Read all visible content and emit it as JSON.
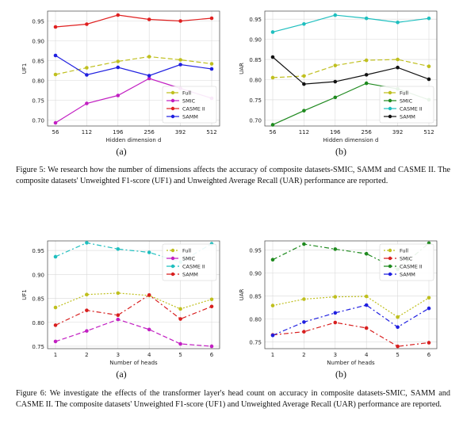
{
  "figures": [
    {
      "number_label": "Figure 5:",
      "caption": "We research how the number of dimensions affects the accuracy of composite datasets-SMIC, SAMM and CASME II. The composite datasets' Unweighted F1-score (UF1) and Unweighted Average Recall (UAR) performance are reported.",
      "panels": [
        "(a)",
        "(b)"
      ]
    },
    {
      "number_label": "Figure 6:",
      "caption": "We investigate the effects of the transformer layer's head count on accuracy in composite datasets-SMIC, SAMM and CASME II. The composite datasets' Unweighted F1-score (UF1) and Unweighted Average Recall (UAR) performance are reported.",
      "panels": [
        "(a)",
        "(b)"
      ]
    }
  ],
  "colors": {
    "Full": "#bfbf1e",
    "SMIC": "#c21fc2",
    "CASME II": "#1fbfbf",
    "SAMM": "#1f1fe0",
    "SMIC_b": "#1f8a1f",
    "SAMM_b": "#111111",
    "SMIC_h": "#d81f1f",
    "SMIC_hb": "#d81f1f",
    "CASME II_hb": "#1f8a1f"
  },
  "chart_data": [
    {
      "type": "line",
      "xlabel": "Hidden dimension d",
      "ylabel": "UF1",
      "categories": [
        "56",
        "112",
        "196",
        "256",
        "392",
        "512"
      ],
      "yticks": [
        "0.70",
        "0.75",
        "0.80",
        "0.85",
        "0.90",
        "0.95"
      ],
      "ylim": [
        0.685,
        0.975
      ],
      "legend": "lower-right",
      "series": [
        {
          "name": "Full",
          "values": [
            0.815,
            0.832,
            0.848,
            0.86,
            0.852,
            0.842
          ],
          "dash": "6,3",
          "color_key": "Full"
        },
        {
          "name": "SMIC",
          "values": [
            0.693,
            0.742,
            0.762,
            0.805,
            0.78,
            0.755
          ],
          "dash": "",
          "color_key": "SMIC"
        },
        {
          "name": "CASME II",
          "values": [
            0.935,
            0.942,
            0.965,
            0.954,
            0.95,
            0.957
          ],
          "dash": "",
          "color": "#e02020"
        },
        {
          "name": "SAMM",
          "values": [
            0.863,
            0.814,
            0.833,
            0.812,
            0.84,
            0.829
          ],
          "dash": "",
          "color_key": "SAMM"
        }
      ]
    },
    {
      "type": "line",
      "xlabel": "Hidden dimension d",
      "ylabel": "UAR",
      "categories": [
        "56",
        "112",
        "196",
        "256",
        "392",
        "512"
      ],
      "yticks": [
        "0.70",
        "0.75",
        "0.80",
        "0.85",
        "0.90",
        "0.95"
      ],
      "ylim": [
        0.685,
        0.97
      ],
      "legend": "lower-right",
      "series": [
        {
          "name": "Full",
          "values": [
            0.805,
            0.809,
            0.835,
            0.848,
            0.85,
            0.833
          ],
          "dash": "6,3",
          "color_key": "Full"
        },
        {
          "name": "SMIC",
          "values": [
            0.688,
            0.723,
            0.756,
            0.791,
            0.777,
            0.75
          ],
          "dash": "",
          "color_key": "SMIC_b"
        },
        {
          "name": "CASME II",
          "values": [
            0.918,
            0.938,
            0.96,
            0.952,
            0.942,
            0.952
          ],
          "dash": "",
          "color_key": "CASME II"
        },
        {
          "name": "SAMM",
          "values": [
            0.856,
            0.789,
            0.795,
            0.812,
            0.83,
            0.801
          ],
          "dash": "",
          "color_key": "SAMM_b"
        }
      ]
    },
    {
      "type": "line",
      "xlabel": "Number of heads",
      "ylabel": "UF1",
      "categories": [
        "1",
        "2",
        "3",
        "4",
        "5",
        "6"
      ],
      "yticks": [
        "0.75",
        "0.80",
        "0.85",
        "0.90",
        "0.95"
      ],
      "ylim": [
        0.745,
        0.97
      ],
      "legend": "top-right",
      "series": [
        {
          "name": "Full",
          "values": [
            0.831,
            0.858,
            0.861,
            0.856,
            0.828,
            0.848
          ],
          "dash": "2,2",
          "color_key": "Full"
        },
        {
          "name": "SMIC",
          "values": [
            0.76,
            0.782,
            0.806,
            0.785,
            0.755,
            0.75
          ],
          "dash": "6,3",
          "color_key": "SMIC"
        },
        {
          "name": "CASME II",
          "values": [
            0.937,
            0.966,
            0.953,
            0.946,
            0.926,
            0.964
          ],
          "dash": "6,3,2,3",
          "color_key": "CASME II"
        },
        {
          "name": "SAMM",
          "values": [
            0.794,
            0.825,
            0.815,
            0.857,
            0.807,
            0.833
          ],
          "dash": "6,3,2,3",
          "color_key": "SMIC_h"
        }
      ]
    },
    {
      "type": "line",
      "xlabel": "Number of heads",
      "ylabel": "UAR",
      "categories": [
        "1",
        "2",
        "3",
        "4",
        "5",
        "6"
      ],
      "yticks": [
        "0.75",
        "0.80",
        "0.85",
        "0.90",
        "0.95"
      ],
      "ylim": [
        0.735,
        0.97
      ],
      "legend": "top-right",
      "series": [
        {
          "name": "Full",
          "values": [
            0.829,
            0.843,
            0.848,
            0.849,
            0.804,
            0.846
          ],
          "dash": "2,2",
          "color_key": "Full"
        },
        {
          "name": "SMIC",
          "values": [
            0.765,
            0.772,
            0.792,
            0.78,
            0.74,
            0.748
          ],
          "dash": "6,3,2,3",
          "color_key": "SMIC_hb"
        },
        {
          "name": "CASME II",
          "values": [
            0.929,
            0.963,
            0.952,
            0.942,
            0.908,
            0.965
          ],
          "dash": "6,3,2,3",
          "color_key": "CASME II_hb"
        },
        {
          "name": "SAMM",
          "values": [
            0.764,
            0.793,
            0.813,
            0.83,
            0.782,
            0.823
          ],
          "dash": "6,3,2,3",
          "color_key": "SAMM"
        }
      ]
    }
  ]
}
